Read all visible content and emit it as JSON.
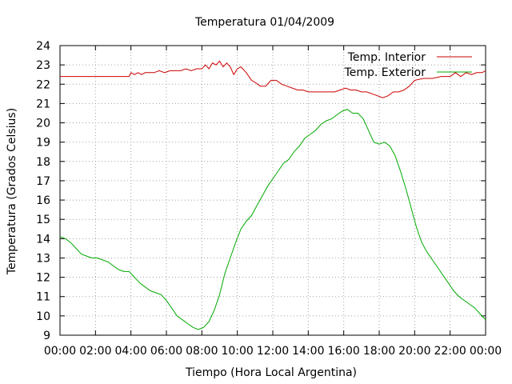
{
  "chart_data": {
    "type": "line",
    "title": "Temperatura 01/04/2009",
    "xlabel": "Tiempo (Hora Local Argentina)",
    "ylabel": "Temperatura (Grados Celsius)",
    "xlim": [
      0,
      24
    ],
    "ylim": [
      9,
      24
    ],
    "x_ticks": [
      "00:00",
      "02:00",
      "04:00",
      "06:00",
      "08:00",
      "10:00",
      "12:00",
      "14:00",
      "16:00",
      "18:00",
      "20:00",
      "22:00",
      "00:00"
    ],
    "y_ticks": [
      "9",
      "10",
      "11",
      "12",
      "13",
      "14",
      "15",
      "16",
      "17",
      "18",
      "19",
      "20",
      "21",
      "22",
      "23",
      "24"
    ],
    "grid": true,
    "legend_position": "top-right",
    "series": [
      {
        "name": "Temp. Interior",
        "color": "#cc0000",
        "x": [
          0,
          1,
          2,
          3,
          3.9,
          4.0,
          4.2,
          4.4,
          4.6,
          4.8,
          5.0,
          5.3,
          5.6,
          5.9,
          6.2,
          6.5,
          6.8,
          7.1,
          7.4,
          7.7,
          8.0,
          8.2,
          8.4,
          8.6,
          8.8,
          9.0,
          9.2,
          9.4,
          9.6,
          9.8,
          10.0,
          10.2,
          10.5,
          10.8,
          11.0,
          11.3,
          11.6,
          11.9,
          12.2,
          12.5,
          12.8,
          13.1,
          13.4,
          13.7,
          14.0,
          14.3,
          14.6,
          14.9,
          15.2,
          15.5,
          15.8,
          16.1,
          16.4,
          16.7,
          17.0,
          17.3,
          17.6,
          17.9,
          18.2,
          18.5,
          18.8,
          19.1,
          19.4,
          19.7,
          20.0,
          20.5,
          21.0,
          21.5,
          22.0,
          22.3,
          22.6,
          22.9,
          23.2,
          23.5,
          23.8,
          24.0
        ],
        "values": [
          22.4,
          22.4,
          22.4,
          22.4,
          22.4,
          22.6,
          22.5,
          22.6,
          22.5,
          22.6,
          22.6,
          22.6,
          22.7,
          22.6,
          22.7,
          22.7,
          22.7,
          22.8,
          22.7,
          22.8,
          22.8,
          23.0,
          22.8,
          23.1,
          23.0,
          23.2,
          22.9,
          23.1,
          22.9,
          22.5,
          22.8,
          22.9,
          22.6,
          22.2,
          22.1,
          21.9,
          21.9,
          22.2,
          22.2,
          22.0,
          21.9,
          21.8,
          21.7,
          21.7,
          21.6,
          21.6,
          21.6,
          21.6,
          21.6,
          21.6,
          21.7,
          21.8,
          21.7,
          21.7,
          21.6,
          21.6,
          21.5,
          21.4,
          21.3,
          21.4,
          21.6,
          21.6,
          21.7,
          21.9,
          22.2,
          22.3,
          22.3,
          22.4,
          22.4,
          22.6,
          22.4,
          22.6,
          22.5,
          22.6,
          22.6,
          22.7
        ]
      },
      {
        "name": "Temp. Exterior",
        "color": "#00aa00",
        "x": [
          0,
          0.3,
          0.6,
          0.9,
          1.2,
          1.5,
          1.8,
          2.1,
          2.4,
          2.7,
          3.0,
          3.3,
          3.6,
          3.9,
          4.2,
          4.5,
          4.8,
          5.1,
          5.4,
          5.7,
          6.0,
          6.3,
          6.6,
          6.9,
          7.2,
          7.5,
          7.8,
          8.1,
          8.4,
          8.7,
          9.0,
          9.3,
          9.6,
          9.9,
          10.2,
          10.5,
          10.8,
          11.1,
          11.4,
          11.7,
          12.0,
          12.3,
          12.6,
          12.9,
          13.2,
          13.5,
          13.8,
          14.1,
          14.4,
          14.7,
          15.0,
          15.3,
          15.6,
          15.9,
          16.2,
          16.5,
          16.8,
          17.1,
          17.4,
          17.7,
          18.0,
          18.3,
          18.6,
          18.9,
          19.2,
          19.5,
          19.8,
          20.1,
          20.4,
          20.7,
          21.0,
          21.3,
          21.6,
          21.9,
          22.2,
          22.5,
          22.8,
          23.1,
          23.4,
          23.7,
          24.0
        ],
        "values": [
          14.1,
          14.0,
          13.8,
          13.5,
          13.2,
          13.1,
          13.0,
          13.0,
          12.9,
          12.8,
          12.6,
          12.4,
          12.3,
          12.3,
          12.0,
          11.7,
          11.5,
          11.3,
          11.2,
          11.1,
          10.8,
          10.4,
          10.0,
          9.8,
          9.6,
          9.4,
          9.3,
          9.4,
          9.7,
          10.3,
          11.1,
          12.2,
          13.0,
          13.8,
          14.5,
          14.9,
          15.2,
          15.7,
          16.2,
          16.7,
          17.1,
          17.5,
          17.9,
          18.1,
          18.5,
          18.8,
          19.2,
          19.4,
          19.6,
          19.9,
          20.1,
          20.2,
          20.4,
          20.6,
          20.7,
          20.5,
          20.5,
          20.2,
          19.6,
          19.0,
          18.9,
          19.0,
          18.8,
          18.3,
          17.5,
          16.6,
          15.6,
          14.6,
          13.8,
          13.3,
          12.9,
          12.5,
          12.1,
          11.7,
          11.3,
          11.0,
          10.8,
          10.6,
          10.4,
          10.1,
          9.8
        ]
      }
    ]
  }
}
